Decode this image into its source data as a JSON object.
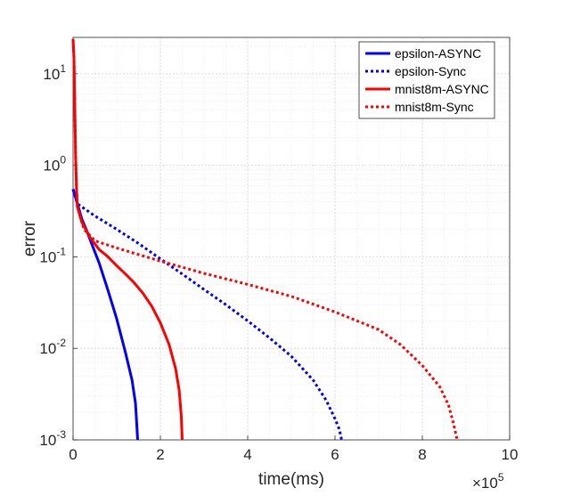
{
  "chart_data": {
    "type": "line",
    "xlabel": "time(ms)",
    "ylabel": "error",
    "x_multiplier": "×10",
    "x_multiplier_exp": "5",
    "xlim": [
      0,
      1000000
    ],
    "ylim": [
      0.001,
      25
    ],
    "yscale": "log",
    "grid": true,
    "legend_position": "top-right",
    "x_ticks": [
      {
        "value": 0,
        "label": "0"
      },
      {
        "value": 200000,
        "label": "2"
      },
      {
        "value": 400000,
        "label": "4"
      },
      {
        "value": 600000,
        "label": "6"
      },
      {
        "value": 800000,
        "label": "8"
      },
      {
        "value": 1000000,
        "label": "10"
      }
    ],
    "y_ticks": [
      {
        "value": 10,
        "base": "10",
        "exp": "1"
      },
      {
        "value": 1,
        "base": "10",
        "exp": "0"
      },
      {
        "value": 0.1,
        "base": "10",
        "exp": "-1"
      },
      {
        "value": 0.01,
        "base": "10",
        "exp": "-2"
      },
      {
        "value": 0.001,
        "base": "10",
        "exp": "-3"
      }
    ],
    "series": [
      {
        "name": "epsilon-ASYNC",
        "color": "#0000ff",
        "style": "solid",
        "points": [
          [
            0,
            0.55
          ],
          [
            10000,
            0.38
          ],
          [
            20000,
            0.26
          ],
          [
            30000,
            0.2
          ],
          [
            40000,
            0.15
          ],
          [
            60000,
            0.085
          ],
          [
            80000,
            0.043
          ],
          [
            100000,
            0.021
          ],
          [
            120000,
            0.009
          ],
          [
            135000,
            0.0045
          ],
          [
            143000,
            0.0025
          ],
          [
            148000,
            0.001
          ]
        ]
      },
      {
        "name": "epsilon-Sync",
        "color": "#0000ff",
        "style": "dotted",
        "points": [
          [
            0,
            0.55
          ],
          [
            10000,
            0.38
          ],
          [
            50000,
            0.28
          ],
          [
            100000,
            0.2
          ],
          [
            150000,
            0.14
          ],
          [
            200000,
            0.095
          ],
          [
            250000,
            0.065
          ],
          [
            300000,
            0.044
          ],
          [
            350000,
            0.03
          ],
          [
            400000,
            0.02
          ],
          [
            450000,
            0.013
          ],
          [
            500000,
            0.0082
          ],
          [
            550000,
            0.0045
          ],
          [
            580000,
            0.0027
          ],
          [
            600000,
            0.0017
          ],
          [
            610000,
            0.0013
          ],
          [
            615000,
            0.001
          ]
        ]
      },
      {
        "name": "mnist8m-ASYNC",
        "color": "#ff0000",
        "style": "solid",
        "points": [
          [
            0,
            24
          ],
          [
            2000,
            15
          ],
          [
            4000,
            4
          ],
          [
            6000,
            1.2
          ],
          [
            8000,
            0.55
          ],
          [
            10000,
            0.35
          ],
          [
            20000,
            0.24
          ],
          [
            40000,
            0.16
          ],
          [
            60000,
            0.12
          ],
          [
            80000,
            0.1
          ],
          [
            100000,
            0.08
          ],
          [
            120000,
            0.065
          ],
          [
            140000,
            0.052
          ],
          [
            160000,
            0.04
          ],
          [
            180000,
            0.029
          ],
          [
            200000,
            0.019
          ],
          [
            220000,
            0.011
          ],
          [
            235000,
            0.006
          ],
          [
            243000,
            0.0035
          ],
          [
            248000,
            0.0018
          ],
          [
            250000,
            0.001
          ]
        ]
      },
      {
        "name": "mnist8m-Sync",
        "color": "#ff0000",
        "style": "dotted",
        "points": [
          [
            0,
            24
          ],
          [
            2000,
            15
          ],
          [
            4000,
            4
          ],
          [
            6000,
            1.2
          ],
          [
            8000,
            0.55
          ],
          [
            10000,
            0.35
          ],
          [
            25000,
            0.2
          ],
          [
            50000,
            0.15
          ],
          [
            100000,
            0.125
          ],
          [
            200000,
            0.09
          ],
          [
            300000,
            0.066
          ],
          [
            400000,
            0.05
          ],
          [
            500000,
            0.037
          ],
          [
            600000,
            0.025
          ],
          [
            700000,
            0.016
          ],
          [
            750000,
            0.011
          ],
          [
            800000,
            0.0065
          ],
          [
            840000,
            0.0038
          ],
          [
            860000,
            0.0024
          ],
          [
            870000,
            0.0016
          ],
          [
            880000,
            0.001
          ]
        ]
      }
    ]
  }
}
